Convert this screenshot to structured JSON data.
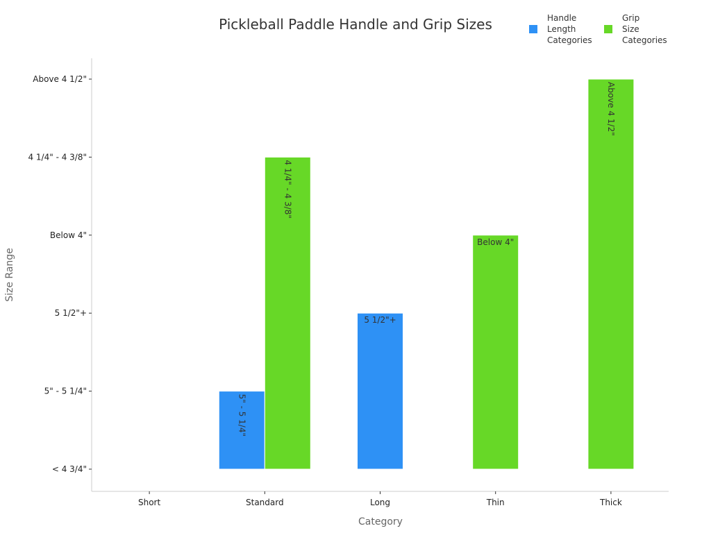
{
  "chart_data": {
    "type": "bar",
    "title": "Pickleball Paddle Handle and Grip Sizes",
    "xlabel": "Category",
    "ylabel": "Size Range",
    "categories": [
      "Short",
      "Standard",
      "Long",
      "Thin",
      "Thick"
    ],
    "y_categories": [
      "< 4 3/4\"",
      "5\" - 5 1/4\"",
      "5 1/2\"+",
      "Below 4\"",
      "4 1/4\" - 4 3/8\"",
      "Above 4 1/2\""
    ],
    "series": [
      {
        "name": "Handle Length Categories",
        "color": "#2e91f5",
        "values": [
          null,
          "5\" - 5 1/4\"",
          "5 1/2\"+",
          null,
          null
        ]
      },
      {
        "name": "Grip Size Categories",
        "color": "#67d827",
        "values": [
          null,
          "4 1/4\" - 4 3/8\"",
          null,
          "Below 4\"",
          "Above 4 1/2\""
        ]
      }
    ],
    "legend_lines": [
      [
        "Handle",
        "Length",
        "Categories"
      ],
      [
        "Grip",
        "Size",
        "Categories"
      ]
    ],
    "legend_position": "top-right",
    "grid": false
  }
}
